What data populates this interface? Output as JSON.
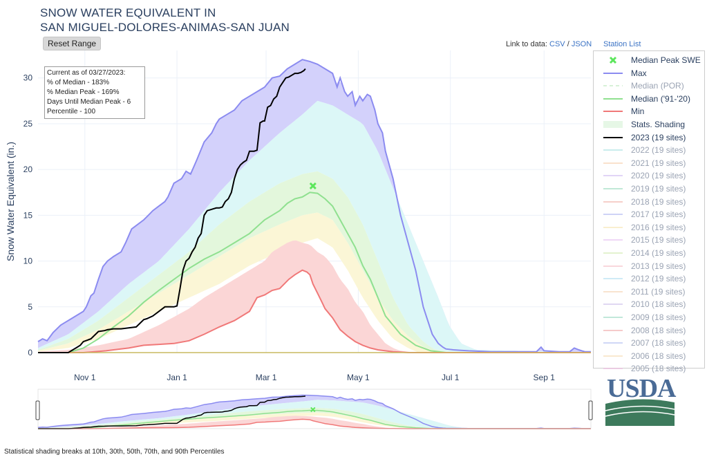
{
  "header": {
    "title_line1": "SNOW WATER EQUIVALENT IN",
    "title_line2": "SAN MIGUEL-DOLORES-ANIMAS-SAN JUAN",
    "reset_button": "Reset Range",
    "link_prefix": "Link to data:",
    "link_csv": "CSV",
    "link_sep": "/",
    "link_json": "JSON",
    "station_list": "Station List"
  },
  "stats_box": {
    "line1": "Current as of 03/27/2023:",
    "line2": "% of Median - 183%",
    "line3": "% Median Peak - 169%",
    "line4": "Days Until Median Peak - 6",
    "line5": "Percentile - 100"
  },
  "footnote": "Statistical shading breaks at 10th, 30th, 50th, 70th, and 90th Percentiles",
  "logo": {
    "text": "USDA",
    "color": "#4a6b96",
    "ground_color": "#3d7a5c"
  },
  "legend": [
    {
      "label": "Median Peak SWE",
      "color": "#5ce65c",
      "kind": "marker",
      "muted": false
    },
    {
      "label": "Max",
      "color": "#8b8bf0",
      "kind": "line",
      "muted": false
    },
    {
      "label": "Median (POR)",
      "color": "#b8e6b8",
      "kind": "dash",
      "muted": true
    },
    {
      "label": "Median ('91-'20)",
      "color": "#8fe08f",
      "kind": "line",
      "muted": false
    },
    {
      "label": "Min",
      "color": "#f07878",
      "kind": "line",
      "muted": false
    },
    {
      "label": "Stats. Shading",
      "color": "#e6f7e6",
      "kind": "area",
      "muted": false
    },
    {
      "label": "2023 (19 sites)",
      "color": "#000000",
      "kind": "line",
      "muted": false
    },
    {
      "label": "2022 (19 sites)",
      "color": "#9ee0e0",
      "kind": "line",
      "muted": true
    },
    {
      "label": "2021 (19 sites)",
      "color": "#f5c9a3",
      "kind": "line",
      "muted": true
    },
    {
      "label": "2020 (19 sites)",
      "color": "#c9b3f0",
      "kind": "line",
      "muted": true
    },
    {
      "label": "2019 (19 sites)",
      "color": "#8ed6b8",
      "kind": "line",
      "muted": true
    },
    {
      "label": "2018 (19 sites)",
      "color": "#f0a8a0",
      "kind": "line",
      "muted": true
    },
    {
      "label": "2017 (19 sites)",
      "color": "#a8b0f0",
      "kind": "line",
      "muted": true
    },
    {
      "label": "2016 (19 sites)",
      "color": "#f5e3a8",
      "kind": "line",
      "muted": true
    },
    {
      "label": "2015 (19 sites)",
      "color": "#e3b8f0",
      "kind": "line",
      "muted": true
    },
    {
      "label": "2014 (19 sites)",
      "color": "#cde8a8",
      "kind": "line",
      "muted": true
    },
    {
      "label": "2013 (19 sites)",
      "color": "#f5b8c0",
      "kind": "line",
      "muted": true
    },
    {
      "label": "2012 (19 sites)",
      "color": "#a8dcf0",
      "kind": "line",
      "muted": true
    },
    {
      "label": "2011 (19 sites)",
      "color": "#f5cfa8",
      "kind": "line",
      "muted": true
    },
    {
      "label": "2010 (18 sites)",
      "color": "#c8b8e8",
      "kind": "line",
      "muted": true
    },
    {
      "label": "2009 (18 sites)",
      "color": "#8fd6bc",
      "kind": "line",
      "muted": true
    },
    {
      "label": "2008 (18 sites)",
      "color": "#f0a0a0",
      "kind": "line",
      "muted": true
    },
    {
      "label": "2007 (18 sites)",
      "color": "#a8b8f0",
      "kind": "line",
      "muted": true
    },
    {
      "label": "2006 (18 sites)",
      "color": "#f5d8a8",
      "kind": "line",
      "muted": true
    },
    {
      "label": "2005 (18 sites)",
      "color": "#f0b8e0",
      "kind": "line",
      "muted": true
    }
  ],
  "chart_data": {
    "type": "area",
    "title": "SNOW WATER EQUIVALENT IN SAN MIGUEL-DOLORES-ANIMAS-SAN JUAN",
    "ylabel": "Snow Water Equivalent (in.)",
    "xlabel": "",
    "ylim": [
      0,
      33
    ],
    "xlim_days": [
      0,
      366
    ],
    "yticks": [
      0,
      5,
      10,
      15,
      20,
      25,
      30
    ],
    "xticks": [
      {
        "day": 31,
        "label": "Nov 1"
      },
      {
        "day": 92,
        "label": "Jan 1"
      },
      {
        "day": 151,
        "label": "Mar 1"
      },
      {
        "day": 212,
        "label": "May 1"
      },
      {
        "day": 273,
        "label": "Jul 1"
      },
      {
        "day": 335,
        "label": "Sep 1"
      }
    ],
    "x_unit": "days since Oct 1",
    "series": {
      "max": {
        "name": "Max",
        "x": [
          0,
          3,
          6,
          10,
          15,
          18,
          22,
          27,
          30,
          32,
          35,
          37,
          40,
          43,
          46,
          50,
          55,
          58,
          62,
          66,
          70,
          73,
          76,
          80,
          84,
          86,
          90,
          95,
          98,
          101,
          105,
          110,
          115,
          118,
          120,
          125,
          130,
          135,
          140,
          145,
          150,
          155,
          160,
          165,
          170,
          175,
          180,
          185,
          190,
          195,
          198,
          200,
          203,
          205,
          208,
          210,
          213,
          215,
          218,
          220,
          223,
          225,
          228,
          230,
          235,
          240,
          245,
          250,
          255,
          258,
          261,
          265,
          268,
          270,
          275,
          280,
          285,
          300,
          320,
          330,
          333,
          335,
          345,
          350,
          352,
          355,
          358,
          360,
          362,
          366
        ],
        "values": [
          1.2,
          1.5,
          1.3,
          2.2,
          3,
          3.3,
          3.7,
          4.2,
          4.5,
          5,
          6.2,
          6.5,
          8,
          9.4,
          10,
          10.5,
          11,
          12,
          13.5,
          14,
          14.5,
          15,
          15.5,
          16,
          16.5,
          17,
          18.5,
          19,
          19.8,
          19.5,
          21,
          23,
          24,
          25,
          25.5,
          26,
          26.5,
          27.5,
          28,
          28.5,
          29,
          30,
          30.2,
          31,
          31.5,
          32,
          31.8,
          31.5,
          31,
          30.5,
          29,
          30,
          28.5,
          28,
          28.5,
          27,
          28,
          27.5,
          28.2,
          28,
          26.5,
          25,
          24,
          22,
          19,
          15,
          12,
          9,
          5,
          3.5,
          2,
          1,
          0.6,
          0.4,
          0.3,
          0.25,
          0.2,
          0.1,
          0.1,
          0.1,
          0.6,
          0.2,
          0.1,
          0.1,
          0.1,
          0.5,
          0.3,
          0.2,
          0.1,
          0.1
        ]
      },
      "p90": {
        "name": "90th percentile",
        "x": [
          0,
          20,
          40,
          60,
          80,
          100,
          120,
          140,
          160,
          175,
          185,
          195,
          205,
          215,
          225,
          235,
          245,
          255,
          265,
          272,
          280,
          290,
          366
        ],
        "values": [
          0.5,
          2,
          4.5,
          7.5,
          10,
          13.5,
          17.5,
          21,
          24,
          26,
          27.5,
          27,
          26,
          25,
          22,
          18,
          14,
          10,
          6,
          3,
          1,
          0.3,
          0
        ]
      },
      "p70": {
        "name": "70th percentile",
        "x": [
          0,
          20,
          40,
          60,
          80,
          100,
          120,
          140,
          160,
          175,
          185,
          195,
          205,
          215,
          225,
          235,
          245,
          255,
          262,
          270,
          366
        ],
        "values": [
          0.3,
          1.5,
          3.5,
          6,
          8.5,
          11,
          14,
          16.5,
          18.5,
          19.5,
          19.8,
          19,
          17,
          14,
          10,
          6,
          3,
          1.2,
          0.4,
          0.1,
          0
        ]
      },
      "p50": {
        "name": "50th percentile",
        "x": [
          0,
          20,
          40,
          60,
          80,
          100,
          120,
          140,
          160,
          175,
          185,
          195,
          205,
          215,
          225,
          235,
          245,
          255,
          266,
          366
        ],
        "values": [
          0.2,
          1,
          2.5,
          4.5,
          6.5,
          8.5,
          10.5,
          12.5,
          14,
          15,
          15.3,
          14.5,
          12,
          9,
          6,
          3.5,
          1.8,
          0.6,
          0,
          0
        ]
      },
      "p30": {
        "name": "30th percentile",
        "x": [
          0,
          20,
          40,
          60,
          80,
          100,
          120,
          140,
          160,
          175,
          185,
          195,
          205,
          215,
          225,
          235,
          245,
          252,
          366
        ],
        "values": [
          0.1,
          0.5,
          1.5,
          3,
          4.5,
          6,
          7.5,
          9.5,
          11,
          12,
          12.5,
          11.5,
          9,
          6,
          3.5,
          1.5,
          0.5,
          0,
          0
        ]
      },
      "median_9120": {
        "name": "Median ('91-'20)",
        "x": [
          0,
          20,
          30,
          40,
          50,
          60,
          70,
          80,
          90,
          100,
          110,
          120,
          130,
          140,
          150,
          160,
          165,
          170,
          175,
          180,
          185,
          190,
          195,
          200,
          205,
          210,
          215,
          220,
          225,
          230,
          240,
          250,
          260,
          270,
          366
        ],
        "values": [
          0,
          0,
          0.5,
          1.5,
          2.8,
          4,
          5.5,
          6.8,
          8,
          9.2,
          10.2,
          11,
          12,
          13,
          14.5,
          15.5,
          16.3,
          16.8,
          17,
          17.5,
          17.4,
          16.8,
          16,
          14.5,
          13,
          11.5,
          9.5,
          8,
          6,
          4,
          2,
          0.8,
          0.2,
          0,
          0
        ]
      },
      "min": {
        "name": "Min",
        "x": [
          0,
          30,
          45,
          50,
          60,
          70,
          80,
          90,
          100,
          110,
          120,
          130,
          140,
          145,
          150,
          155,
          160,
          163,
          166,
          170,
          175,
          178,
          180,
          182,
          185,
          188,
          190,
          195,
          200,
          205,
          210,
          215,
          220,
          225,
          230,
          235,
          240,
          245,
          250,
          260,
          366
        ],
        "values": [
          0,
          0,
          0.2,
          0.3,
          0.5,
          0.8,
          0.9,
          1,
          1.3,
          2,
          2.8,
          3.5,
          4.5,
          6,
          6.3,
          6.8,
          7,
          7.5,
          8,
          8.5,
          9,
          8.8,
          8.5,
          7.5,
          6.5,
          5.5,
          4.8,
          3.8,
          2.5,
          1.8,
          1.2,
          0.8,
          0.5,
          0.3,
          0.2,
          0.1,
          0.05,
          0,
          0,
          0,
          0
        ]
      },
      "min_envelope": {
        "name": "10th percentile",
        "x": [
          0,
          20,
          40,
          60,
          80,
          100,
          110,
          120,
          130,
          140,
          150,
          155,
          160,
          165,
          170,
          175,
          180,
          185,
          190,
          195,
          200,
          205,
          210,
          215,
          220,
          225,
          230,
          235,
          240,
          250,
          366
        ],
        "values": [
          0.1,
          0.3,
          0.8,
          1.5,
          3,
          4.8,
          6,
          7,
          8,
          9,
          10,
          11,
          11.5,
          12,
          12.3,
          12,
          11.8,
          11,
          10.5,
          9.5,
          8,
          7,
          5.5,
          4.5,
          3,
          2,
          1,
          0.5,
          0.2,
          0,
          0
        ]
      },
      "y2023": {
        "name": "2023 (19 sites)",
        "x": [
          0,
          15,
          18,
          20,
          22,
          24,
          26,
          28,
          30,
          35,
          40,
          44,
          46,
          50,
          55,
          60,
          65,
          70,
          72,
          76,
          80,
          84,
          88,
          90,
          92,
          94,
          96,
          98,
          100,
          102,
          104,
          106,
          108,
          110,
          112,
          114,
          116,
          118,
          120,
          122,
          124,
          126,
          128,
          130,
          132,
          134,
          136,
          138,
          140,
          141,
          143,
          145,
          147,
          149,
          150,
          152,
          154,
          156,
          158,
          160,
          162,
          164,
          166,
          168,
          170,
          172,
          174,
          176,
          177
        ],
        "values": [
          0,
          0,
          0,
          0,
          0.2,
          0.4,
          0.6,
          0.8,
          1.2,
          1.5,
          2.3,
          2.4,
          2.5,
          2.6,
          2.6,
          2.7,
          2.8,
          3.6,
          3.7,
          4,
          4.5,
          5,
          5,
          5,
          5.1,
          7,
          9,
          10,
          10.3,
          11,
          11.5,
          12.5,
          13,
          15,
          15.5,
          15.6,
          15.7,
          15.8,
          15.8,
          15.9,
          16.5,
          16.8,
          17.5,
          19,
          20,
          20.5,
          20.8,
          21,
          22,
          22,
          22,
          22.1,
          25.1,
          25.3,
          25.3,
          26.8,
          27,
          27.7,
          28,
          29,
          29.5,
          30,
          30.1,
          30.3,
          30.5,
          30.5,
          30.6,
          30.8,
          31
        ]
      },
      "median_peak": {
        "name": "Median Peak SWE",
        "x": 182,
        "y": 18.2
      }
    }
  }
}
